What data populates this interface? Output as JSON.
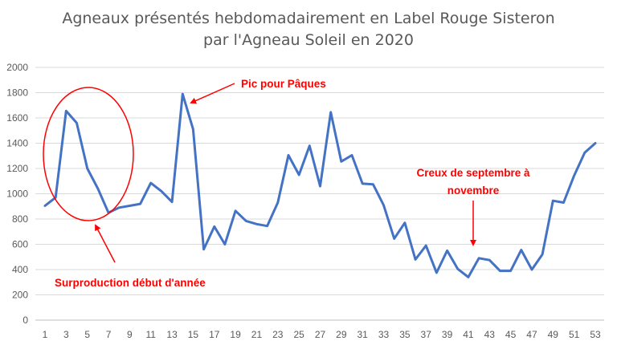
{
  "chart_data": {
    "type": "line",
    "title_line1": "Agneaux présentés hebdomadairement en Label Rouge Sisteron",
    "title_line2": "par l'Agneau Soleil en 2020",
    "xlabel": "",
    "ylabel": "",
    "ylim": [
      0,
      2000
    ],
    "y_ticks": [
      0,
      200,
      400,
      600,
      800,
      1000,
      1200,
      1400,
      1600,
      1800,
      2000
    ],
    "x_tick_labels": [
      "1",
      "3",
      "5",
      "7",
      "9",
      "11",
      "13",
      "15",
      "17",
      "19",
      "21",
      "23",
      "25",
      "27",
      "29",
      "31",
      "33",
      "35",
      "37",
      "39",
      "41",
      "43",
      "45",
      "47",
      "49",
      "51",
      "53"
    ],
    "grid": true,
    "legend": "none",
    "series_color": "#4472c4",
    "annotation_color": "#ff0000",
    "x": [
      1,
      2,
      3,
      4,
      5,
      6,
      7,
      8,
      9,
      10,
      11,
      12,
      13,
      14,
      15,
      16,
      17,
      18,
      19,
      20,
      21,
      22,
      23,
      24,
      25,
      26,
      27,
      28,
      29,
      30,
      31,
      32,
      33,
      34,
      35,
      36,
      37,
      38,
      39,
      40,
      41,
      42,
      43,
      44,
      45,
      46,
      47,
      48,
      49,
      50,
      51,
      52,
      53
    ],
    "values": [
      905,
      970,
      1655,
      1560,
      1200,
      1040,
      850,
      890,
      905,
      920,
      1085,
      1020,
      935,
      1790,
      1510,
      560,
      740,
      600,
      865,
      785,
      760,
      745,
      930,
      1305,
      1150,
      1380,
      1060,
      1645,
      1255,
      1305,
      1080,
      1075,
      910,
      645,
      770,
      480,
      590,
      375,
      550,
      405,
      340,
      490,
      475,
      390,
      390,
      555,
      400,
      520,
      945,
      930,
      1145,
      1325,
      1400
    ],
    "annotations": [
      {
        "text": "Pic pour Pâques"
      },
      {
        "text_line1": "Creux de septembre à",
        "text_line2": "novembre"
      },
      {
        "text": "Surproduction début d'année"
      }
    ]
  }
}
